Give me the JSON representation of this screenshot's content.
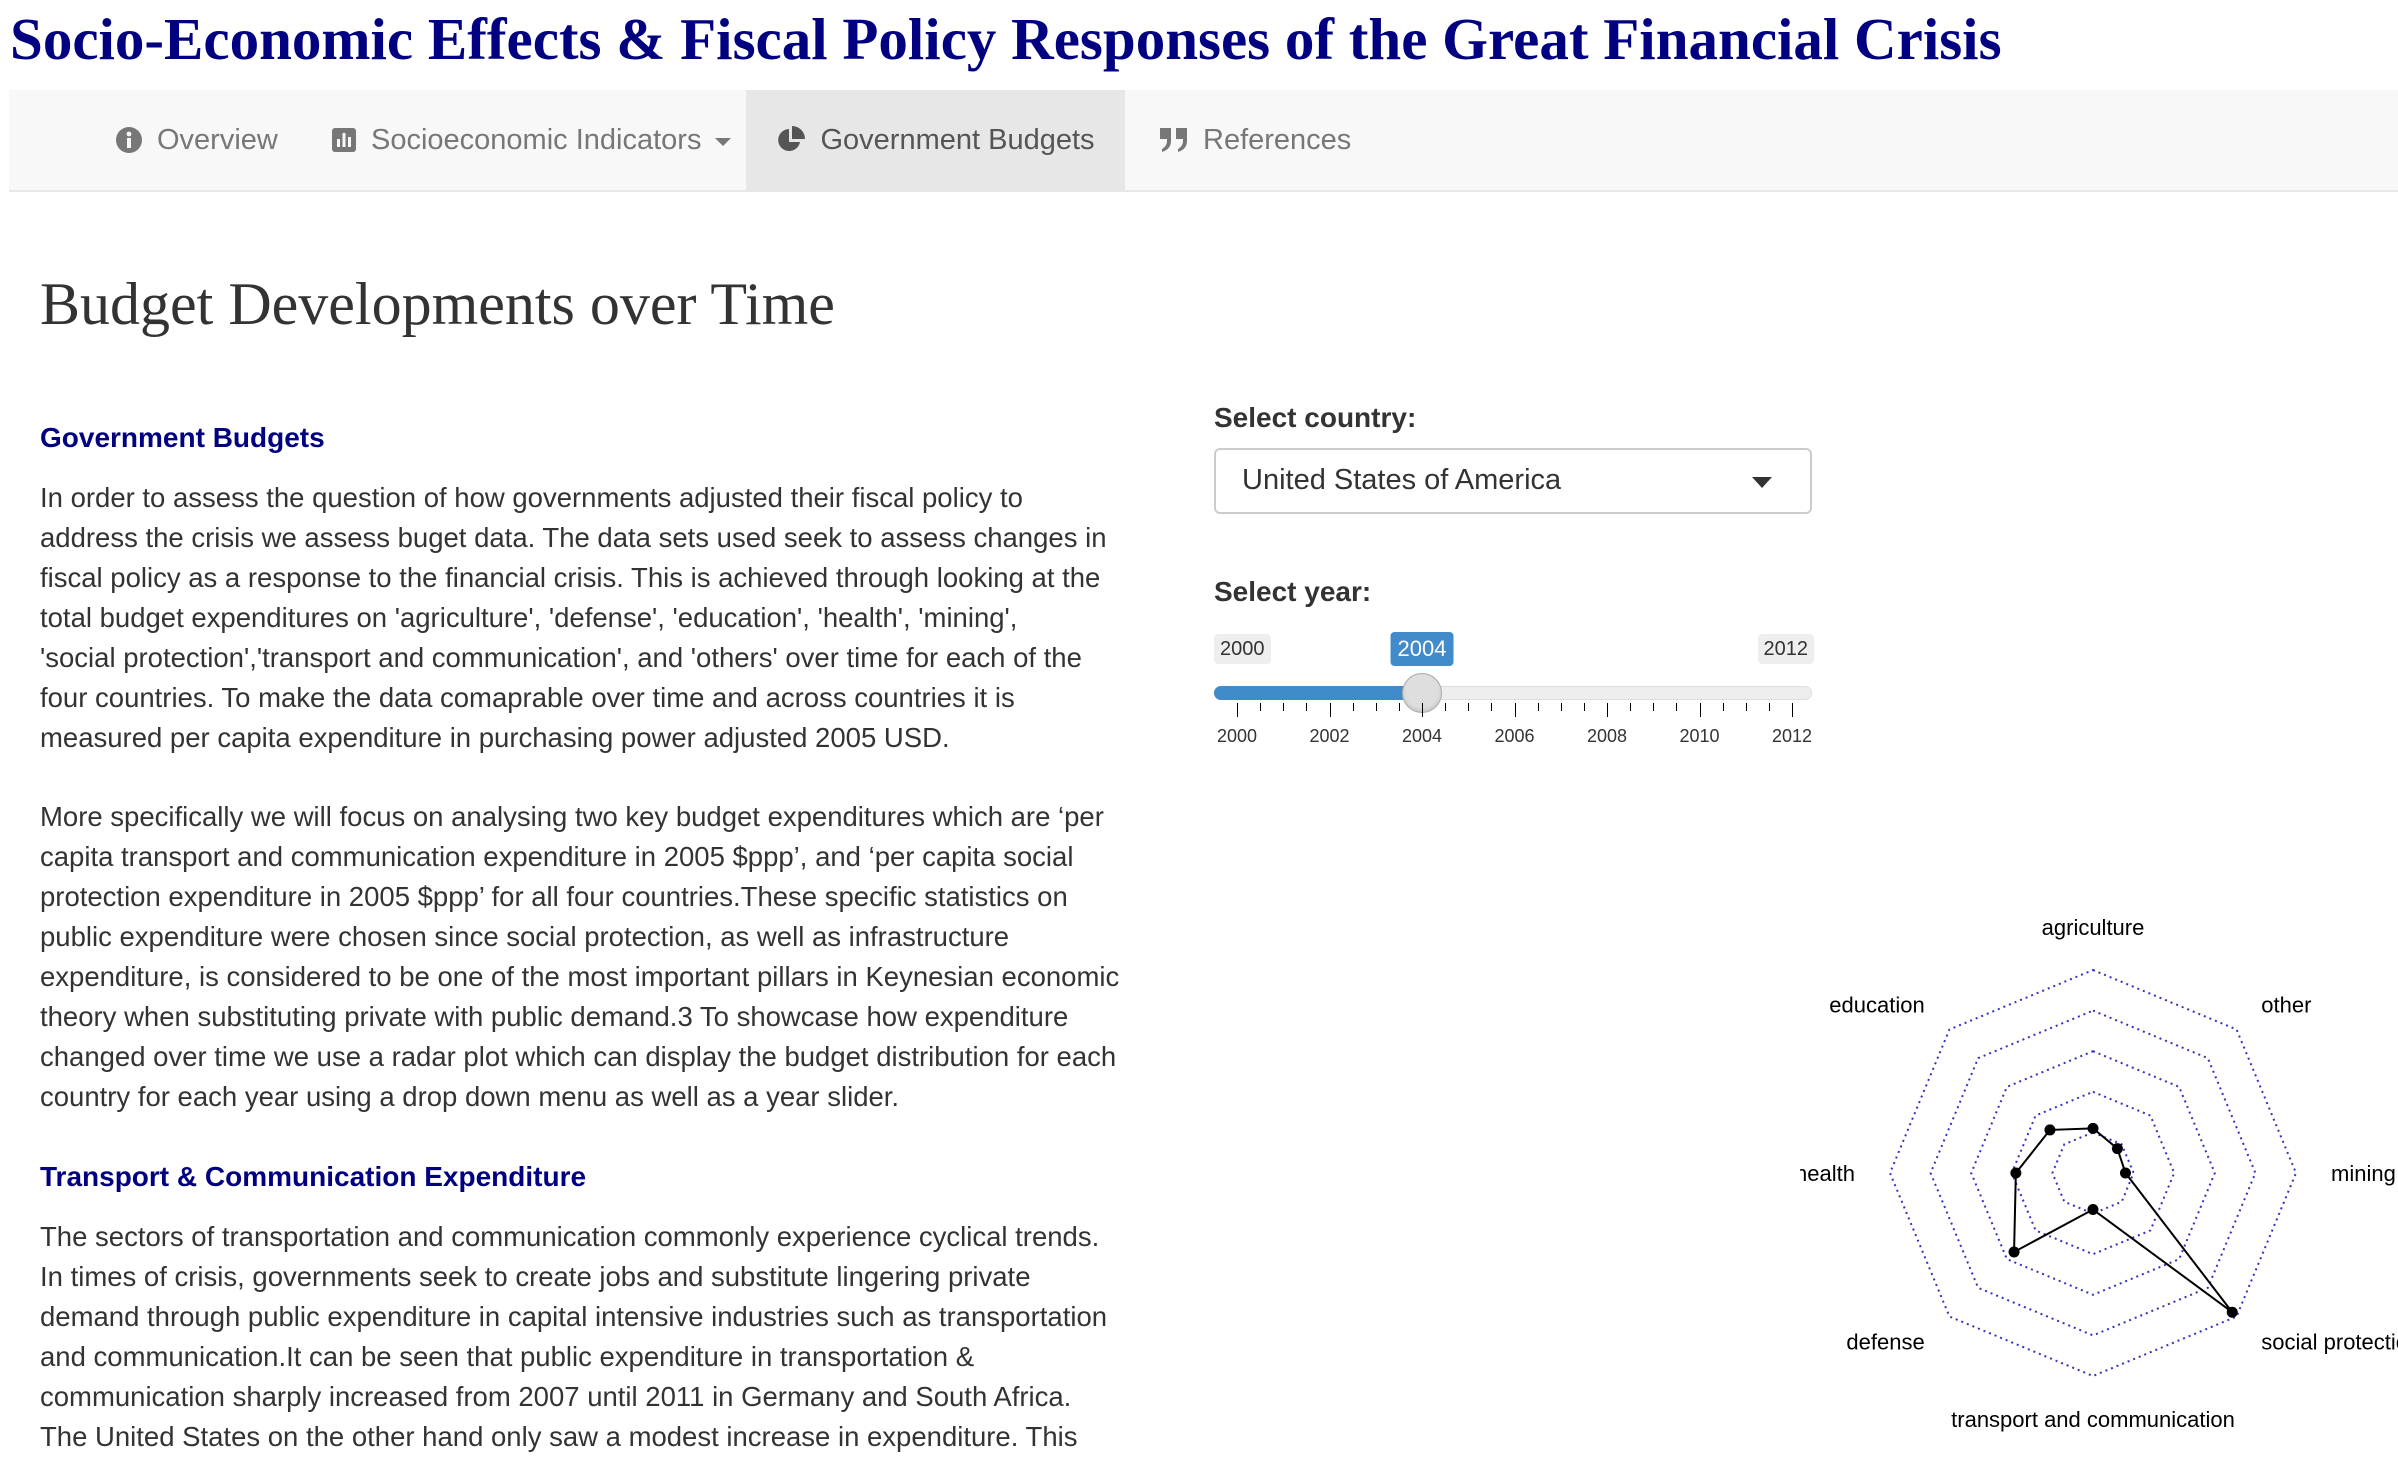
{
  "app_title": "Socio-Economic Effects & Fiscal Policy Responses of the Great Financial Crisis",
  "nav": {
    "items": [
      {
        "label": "Overview",
        "icon": "info-circle-icon"
      },
      {
        "label": "Socioeconomic Indicators",
        "icon": "bar-chart-icon",
        "dropdown": true
      },
      {
        "label": "Government Budgets",
        "icon": "pie-chart-icon",
        "active": true
      },
      {
        "label": "References",
        "icon": "quote-icon"
      }
    ]
  },
  "page_heading": "Budget Developments over Time",
  "sections": {
    "budgets": {
      "heading": "Government Budgets",
      "para1": [
        "In order to assess the question of how governments adjusted their fiscal policy to",
        "address the crisis we assess buget data. The data sets used seek to assess changes in",
        "fiscal policy as a response to the financial crisis. This is achieved through looking at the",
        "total budget expenditures on 'agriculture', 'defense', 'education', 'health', 'mining',",
        "'social protection','transport and communication', and 'others' over time for each of the",
        "four countries. To make the data comaprable over time and across countries it is",
        "measured per capita expenditure in purchasing power adjusted 2005 USD."
      ],
      "para2": [
        "More specifically we will focus on analysing two key budget expenditures which are ‘per",
        "capita transport and communication expenditure in 2005 $ppp’, and ‘per capita social",
        "protection expenditure in 2005 $ppp’ for all four countries.These specific statistics on",
        "public expenditure were chosen since social protection, as well as infrastructure",
        "expenditure, is considered to be one of the most important pillars in Keynesian economic",
        "theory when substituting private with public demand.3 To showcase how expenditure",
        "changed over time we use a radar plot which can display the budget distribution for each",
        "country for each year using a drop down menu as well as a year slider."
      ]
    },
    "transport": {
      "heading": "Transport & Communication Expenditure",
      "para": [
        "The sectors of transportation and communication commonly experience cyclical trends.",
        "In times of crisis, governments seek to create jobs and substitute lingering private",
        "demand through public expenditure in capital intensive industries such as transportation",
        "and communication.It can be seen that public expenditure in transportation &",
        "communication sharply increased from 2007 until 2011 in Germany and South Africa.",
        "The United States on the other hand only saw a modest increase in expenditure. This"
      ]
    }
  },
  "controls": {
    "country_label": "Select country:",
    "country_value": "United States of America",
    "year_label": "Select year:",
    "year_min": 2000,
    "year_max": 2012,
    "year_value": 2004,
    "year_min_label": "2000",
    "year_max_label": "2012",
    "year_value_label": "2004",
    "tick_labels": [
      "2000",
      "2002",
      "2004",
      "2006",
      "2008",
      "2010",
      "2012"
    ],
    "accent_color": "#428bca"
  },
  "chart_data": {
    "type": "radar",
    "axes": [
      "agriculture",
      "other",
      "mining",
      "social protection",
      "transport and communication",
      "defense",
      "health",
      "education"
    ],
    "values": [
      0.22,
      0.17,
      0.16,
      0.97,
      0.18,
      0.55,
      0.38,
      0.3
    ],
    "range": [
      0,
      1
    ],
    "rings": 5,
    "grid_color": "#3333bb",
    "line_color": "#000000"
  }
}
